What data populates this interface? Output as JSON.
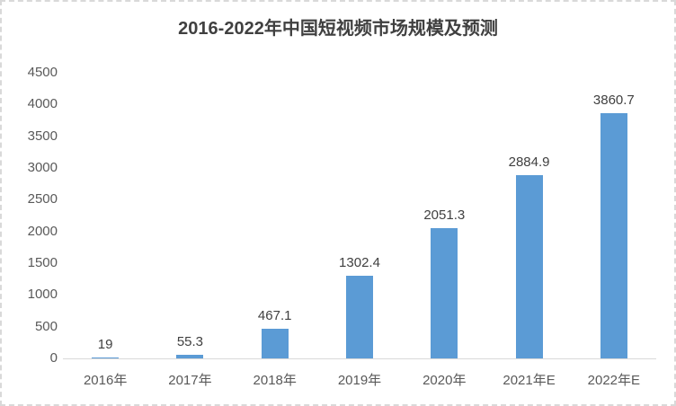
{
  "title": "2016-2022年中国短视频市场规模及预测",
  "colors": {
    "background": "#FFFFFF",
    "bar": "#5B9BD5",
    "title_text": "#404040",
    "data_label_text": "#404040",
    "axis_tick_text": "#595959",
    "axis_line": "#D9D9D9",
    "outer_border": "#D9D9D9"
  },
  "chart_data": {
    "type": "bar",
    "title": "2016-2022年中国短视频市场规模及预测",
    "categories": [
      "2016年",
      "2017年",
      "2018年",
      "2019年",
      "2020年",
      "2021年E",
      "2022年E"
    ],
    "values": [
      19,
      55.3,
      467.1,
      1302.4,
      2051.3,
      2884.9,
      3860.7
    ],
    "data_labels": [
      "19",
      "55.3",
      "467.1",
      "1302.4",
      "2051.3",
      "2884.9",
      "3860.7"
    ],
    "xlabel": "",
    "ylabel": "",
    "ylim": [
      0,
      4500
    ],
    "ytick_step": 500,
    "yticks": [
      0,
      500,
      1000,
      1500,
      2000,
      2500,
      3000,
      3500,
      4000,
      4500
    ],
    "grid": false,
    "legend": "none",
    "data_labels_shown": true
  }
}
